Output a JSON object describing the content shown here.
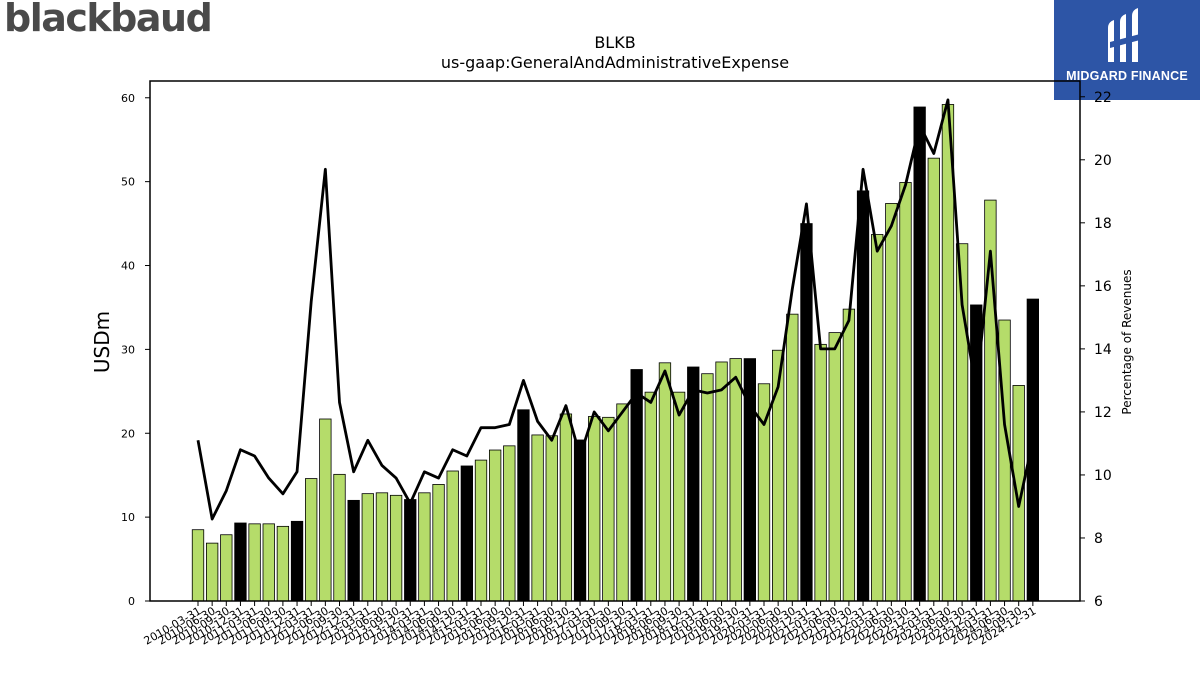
{
  "brand": {
    "left_logo": "blackbaud",
    "right_logo": "MIDGARD FINANCE"
  },
  "colors": {
    "bar_green": "#b5dc6a",
    "bar_black": "#000000",
    "line": "#000000",
    "badge_bg": "#2d55a6"
  },
  "chart_data": {
    "type": "bar",
    "title": "BLKB",
    "subtitle": "us-gaap:GeneralAndAdministrativeExpense",
    "ylabel": "USDm",
    "y2label": "Percentage of Revenues",
    "ylim": [
      0,
      62
    ],
    "y2lim": [
      6,
      22.5
    ],
    "yticks": [
      0,
      10,
      20,
      30,
      40,
      50,
      60
    ],
    "y2ticks": [
      6,
      8,
      10,
      12,
      14,
      16,
      18,
      20,
      22
    ],
    "grid": false,
    "categories": [
      "2010-03-31",
      "2010-06-30",
      "2010-09-30",
      "2010-12-31",
      "2011-03-31",
      "2011-06-30",
      "2011-09-30",
      "2011-12-31",
      "2012-03-31",
      "2012-06-30",
      "2012-09-30",
      "2012-12-31",
      "2013-03-31",
      "2013-06-30",
      "2013-09-30",
      "2013-12-31",
      "2014-03-31",
      "2014-06-30",
      "2014-09-30",
      "2014-12-31",
      "2015-03-31",
      "2015-06-30",
      "2015-09-30",
      "2015-12-31",
      "2016-03-31",
      "2016-06-30",
      "2016-09-30",
      "2016-12-31",
      "2017-03-31",
      "2017-06-30",
      "2017-09-30",
      "2017-12-31",
      "2018-03-31",
      "2018-06-30",
      "2018-09-30",
      "2018-12-31",
      "2019-03-31",
      "2019-06-30",
      "2019-09-30",
      "2019-12-31",
      "2020-03-31",
      "2020-06-30",
      "2020-09-30",
      "2020-12-31",
      "2021-03-31",
      "2021-06-30",
      "2021-09-30",
      "2021-12-31",
      "2022-03-31",
      "2022-06-30",
      "2022-09-30",
      "2022-12-31",
      "2023-03-31",
      "2023-06-30",
      "2023-09-30",
      "2023-12-31",
      "2024-03-31",
      "2024-06-30",
      "2024-09-30",
      "2024-12-31"
    ],
    "series": [
      {
        "kind": "bar",
        "axis": "left",
        "values": [
          8.5,
          6.9,
          7.9,
          9.3,
          9.2,
          9.2,
          8.9,
          9.5,
          14.6,
          21.7,
          15.1,
          12.0,
          12.8,
          12.9,
          12.6,
          12.1,
          12.9,
          13.9,
          15.5,
          16.1,
          16.8,
          18.0,
          18.5,
          22.8,
          19.8,
          19.7,
          22.3,
          19.2,
          22.0,
          21.9,
          23.5,
          27.6,
          24.9,
          28.4,
          24.9,
          27.9,
          27.1,
          28.5,
          28.9,
          28.9,
          25.9,
          29.9,
          34.2,
          45.0,
          30.6,
          32.0,
          34.8,
          48.9,
          43.7,
          47.4,
          49.9,
          58.9,
          52.8,
          59.2,
          42.6,
          35.3,
          47.8,
          33.5,
          25.7,
          36.0
        ],
        "highlight": [
          false,
          false,
          false,
          true,
          false,
          false,
          false,
          true,
          false,
          false,
          false,
          true,
          false,
          false,
          false,
          true,
          false,
          false,
          false,
          true,
          false,
          false,
          false,
          true,
          false,
          false,
          false,
          true,
          false,
          false,
          false,
          true,
          false,
          false,
          false,
          true,
          false,
          false,
          false,
          true,
          false,
          false,
          false,
          true,
          false,
          false,
          false,
          true,
          false,
          false,
          false,
          true,
          false,
          false,
          false,
          true,
          false,
          false,
          false,
          true
        ]
      },
      {
        "kind": "line",
        "axis": "right",
        "values": [
          11.1,
          8.6,
          9.5,
          10.8,
          10.6,
          9.9,
          9.4,
          10.1,
          15.5,
          19.7,
          12.3,
          10.1,
          11.1,
          10.3,
          9.9,
          9.1,
          10.1,
          9.9,
          10.8,
          10.6,
          11.5,
          11.5,
          11.6,
          13.0,
          11.7,
          11.1,
          12.2,
          10.6,
          12.0,
          11.4,
          12.0,
          12.6,
          12.3,
          13.3,
          11.9,
          12.7,
          12.6,
          12.7,
          13.1,
          12.2,
          11.6,
          12.8,
          15.9,
          18.6,
          14.0,
          14.0,
          14.9,
          19.7,
          17.1,
          17.9,
          19.2,
          21.1,
          20.2,
          21.9,
          15.4,
          12.7,
          17.1,
          11.6,
          9.0,
          11.1
        ]
      }
    ]
  }
}
